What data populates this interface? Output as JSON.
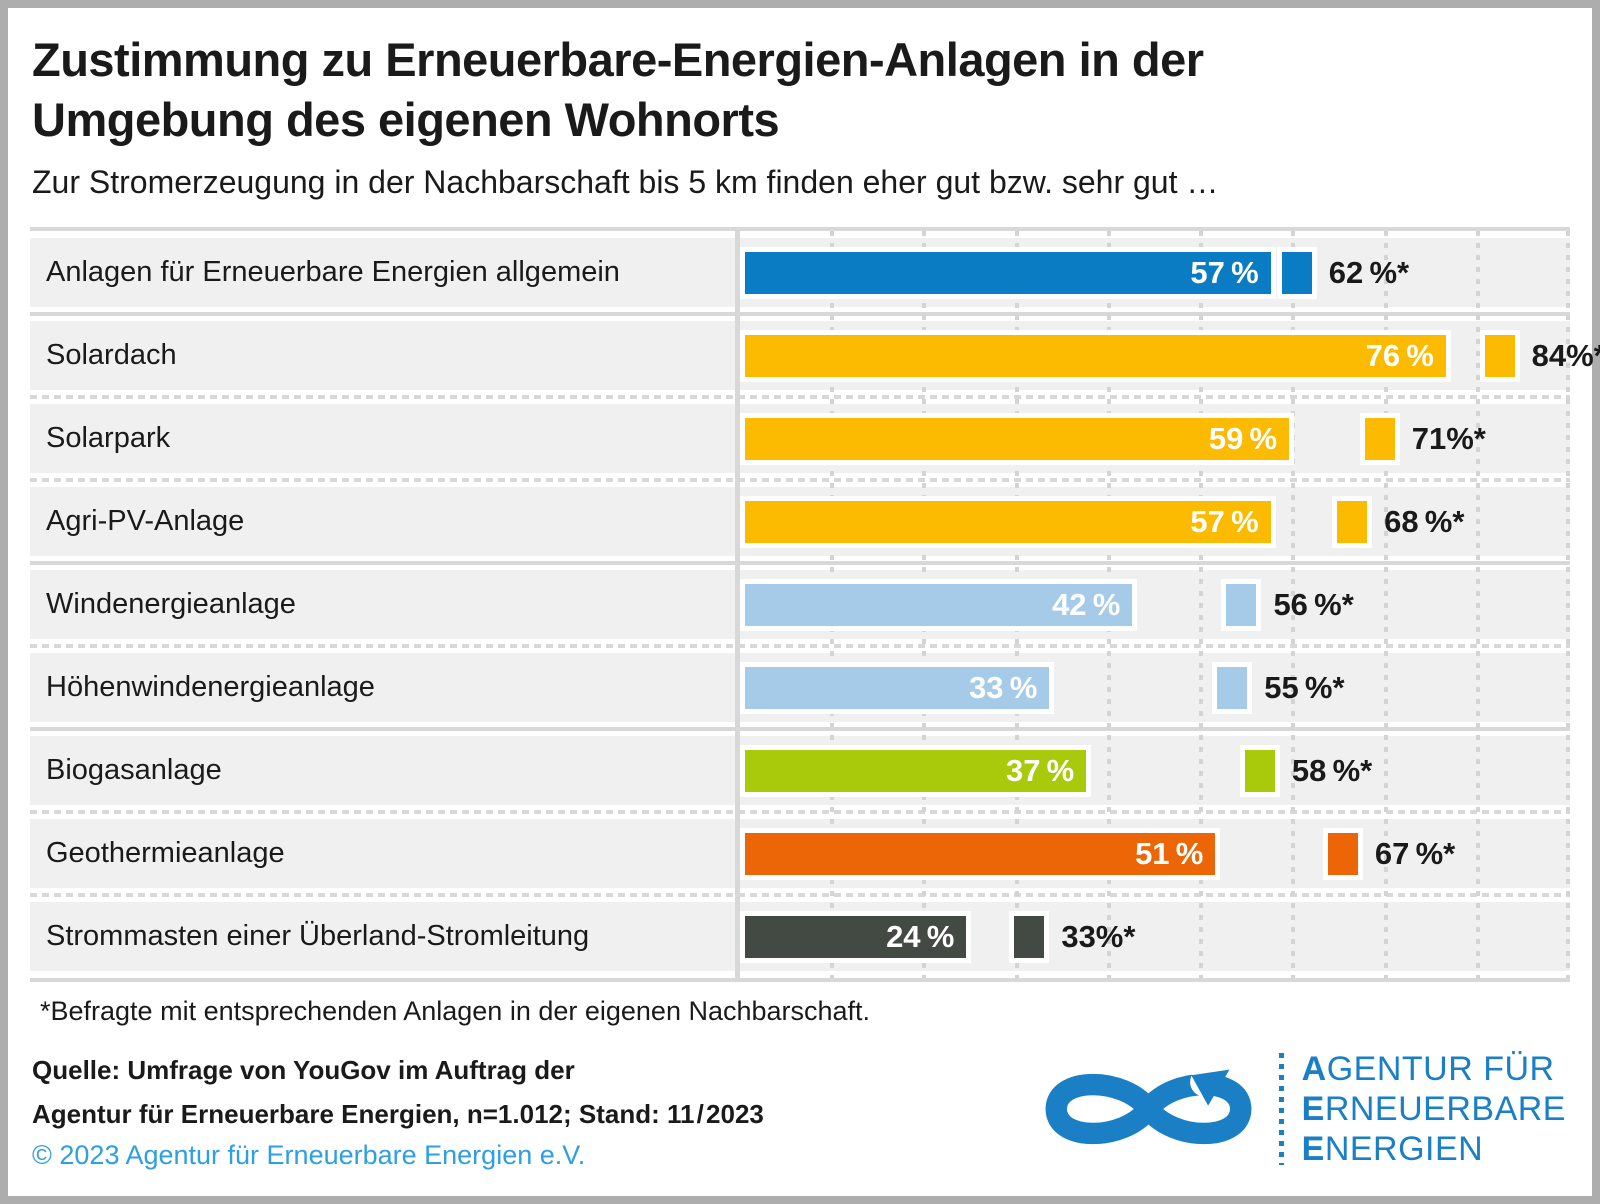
{
  "header": {
    "title_lines": [
      "Zustimmung zu Erneuerbare-Energien-Anlagen in der",
      "Umgebung des eigenen Wohnorts"
    ],
    "subtitle": "Zur Stromerzeugung in der Nachbarschaft bis 5 km finden eher gut bzw. sehr gut …"
  },
  "chart_data": {
    "type": "bar",
    "orientation": "horizontal",
    "title": "Zustimmung zu Erneuerbare-Energien-Anlagen in der Umgebung des eigenen Wohnorts",
    "subtitle": "Zur Stromerzeugung in der Nachbarschaft bis 5 km finden eher gut bzw. sehr gut …",
    "unit": "%",
    "xlim": [
      0,
      90
    ],
    "gridline_step": 10,
    "grid": "dotted-vertical",
    "series_note": "Main bar = all respondents; small square (asterisk) = respondents with such installations in their own neighborhood",
    "rows": [
      {
        "label": "Anlagen für Erneuerbare Energien allgemein",
        "color": "#0a7cc4",
        "value": 57,
        "value_label": "57 %",
        "asterisk_value": 62,
        "asterisk_label": "62 %*",
        "separator_after": "solid"
      },
      {
        "label": "Solardach",
        "color": "#fcbb00",
        "value": 76,
        "value_label": "76 %",
        "asterisk_value": 84,
        "asterisk_label": "84%*",
        "separator_after": "dotted"
      },
      {
        "label": "Solarpark",
        "color": "#fcbb00",
        "value": 59,
        "value_label": "59 %",
        "asterisk_value": 71,
        "asterisk_label": "71%*",
        "separator_after": "dotted"
      },
      {
        "label": "Agri-PV-Anlage",
        "color": "#fcbb00",
        "value": 57,
        "value_label": "57 %",
        "asterisk_value": 68,
        "asterisk_label": "68 %*",
        "separator_after": "solid"
      },
      {
        "label": "Windenergieanlage",
        "color": "#a6cbe9",
        "value": 42,
        "value_label": "42 %",
        "asterisk_value": 56,
        "asterisk_label": "56 %*",
        "separator_after": "dotted"
      },
      {
        "label": "Höhenwindenergieanlage",
        "color": "#a6cbe9",
        "value": 33,
        "value_label": "33 %",
        "asterisk_value": 55,
        "asterisk_label": "55 %*",
        "separator_after": "solid"
      },
      {
        "label": "Biogasanlage",
        "color": "#a9ca0b",
        "value": 37,
        "value_label": "37 %",
        "asterisk_value": 58,
        "asterisk_label": "58 %*",
        "separator_after": "dotted"
      },
      {
        "label": "Geothermieanlage",
        "color": "#ec6608",
        "value": 51,
        "value_label": "51 %",
        "asterisk_value": 67,
        "asterisk_label": "67 %*",
        "separator_after": "dotted"
      },
      {
        "label": "Strommasten einer Überland-Stromleitung",
        "color": "#434a44",
        "value": 24,
        "value_label": "24 %",
        "asterisk_value": 33,
        "asterisk_label": "33%*"
      }
    ]
  },
  "footnote": "*Befragte mit entsprechenden Anlagen in der eigenen Nachbarschaft.",
  "source": {
    "line1": "Quelle: Umfrage von YouGov im Auftrag der",
    "line2": "Agentur für Erneuerbare Energien, n=1.012; Stand: 11 / 2023",
    "copyright": "© 2023 Agentur für Erneuerbare Energien e.V.",
    "copyright_color": "#2e9fe0"
  },
  "logo": {
    "lines": [
      "AGENTUR FÜR",
      "ERNEUERBARE",
      "ENERGIEN"
    ],
    "color": "#1a7fc5"
  }
}
